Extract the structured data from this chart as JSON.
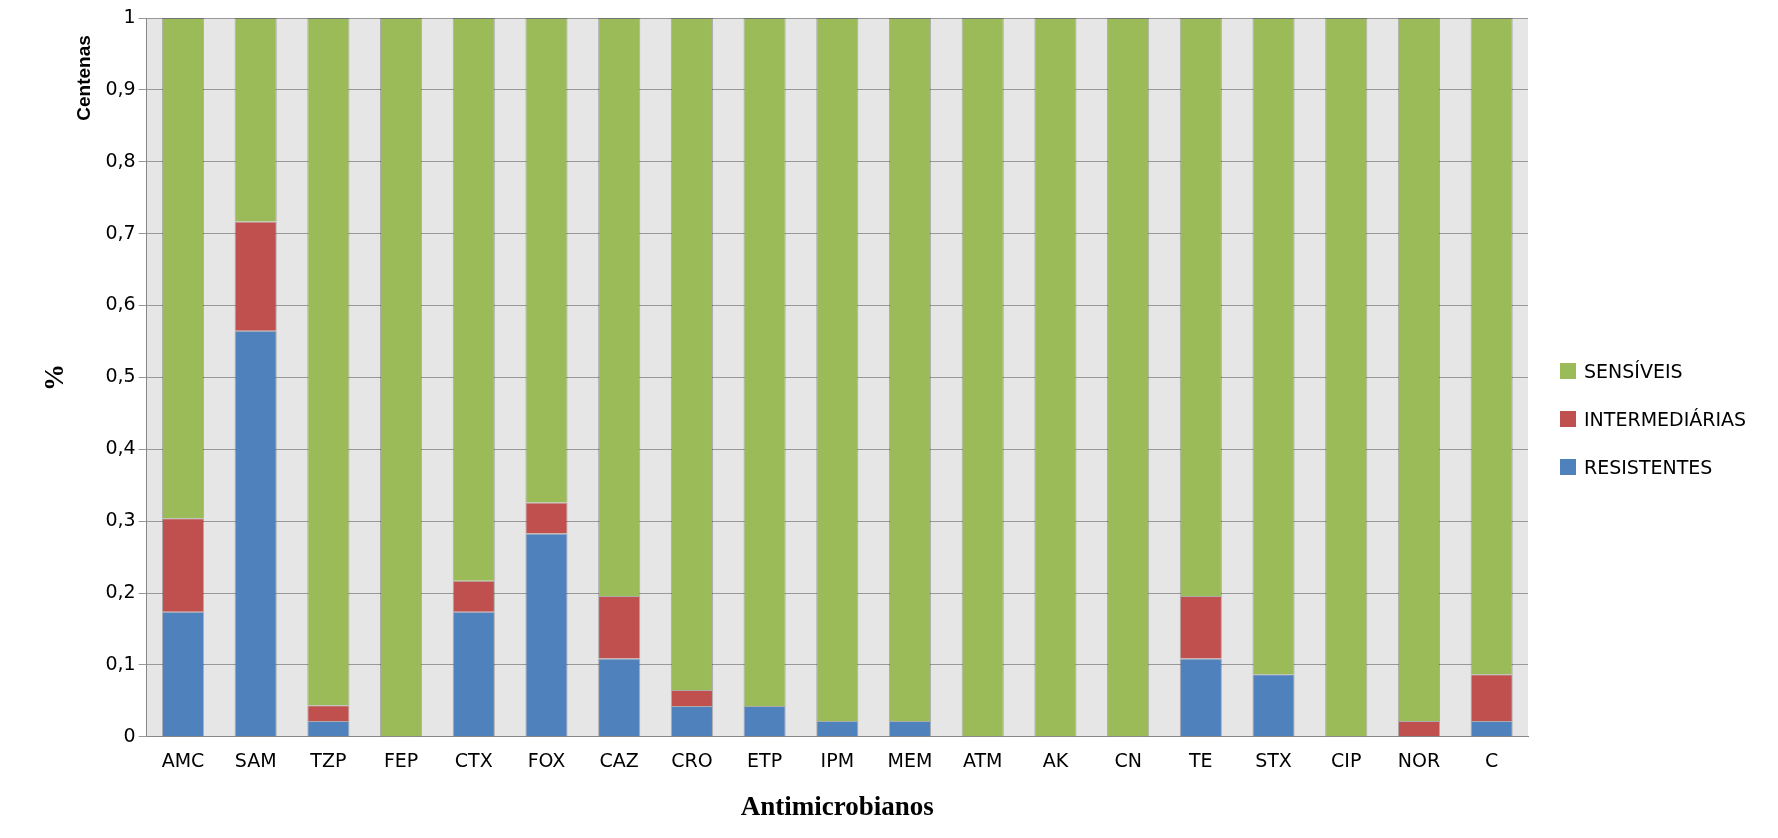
{
  "chart_data": {
    "type": "bar",
    "stacked": true,
    "xlabel": "Antimicrobianos",
    "ylabel": "%",
    "annotations": [
      "Centenas"
    ],
    "categories": [
      "AMC",
      "SAM",
      "TZP",
      "FEP",
      "CTX",
      "FOX",
      "CAZ",
      "CRO",
      "ETP",
      "IPM",
      "MEM",
      "ATM",
      "AK",
      "CN",
      "TE",
      "STX",
      "CIP",
      "NOR",
      "C"
    ],
    "series": [
      {
        "name": "RESISTENTES",
        "color": "#4f81bd",
        "values": [
          0.174,
          0.565,
          0.022,
          0,
          0.174,
          0.283,
          0.109,
          0.043,
          0.043,
          0.022,
          0.022,
          0,
          0,
          0,
          0.109,
          0.087,
          0,
          0,
          0.022
        ]
      },
      {
        "name": "INTERMEDIÁRIAS",
        "color": "#c0504d",
        "values": [
          0.13,
          0.152,
          0.022,
          0,
          0.043,
          0.043,
          0.087,
          0.022,
          0,
          0,
          0,
          0,
          0,
          0,
          0.087,
          0,
          0,
          0.022,
          0.065
        ]
      },
      {
        "name": "SENSÍVEIS",
        "color": "#9bbb59",
        "values": [
          0.696,
          0.283,
          0.956,
          1,
          0.783,
          0.674,
          0.804,
          0.935,
          0.957,
          0.978,
          0.978,
          1,
          1,
          1,
          0.804,
          0.913,
          1,
          0.978,
          0.913
        ]
      }
    ],
    "ylim": [
      0,
      1
    ],
    "yticks": [
      0,
      {
        "value": 0.1,
        "label": "0,1"
      },
      {
        "value": 0.2,
        "label": "0,2"
      },
      {
        "value": 0.3,
        "label": "0,3"
      },
      {
        "value": 0.4,
        "label": "0,4"
      },
      {
        "value": 0.5,
        "label": "0,5"
      },
      {
        "value": 0.6,
        "label": "0,6"
      },
      {
        "value": 0.7,
        "label": "0,7"
      },
      {
        "value": 0.8,
        "label": "0,8"
      },
      {
        "value": 0.9,
        "label": "0,9"
      },
      1
    ],
    "grid": "y",
    "legend": "right"
  }
}
